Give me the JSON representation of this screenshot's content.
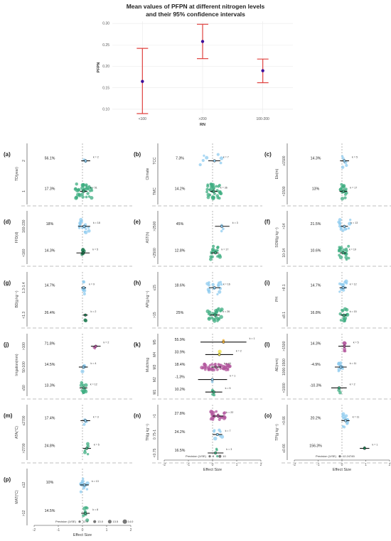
{
  "figure": {
    "title_line1": "Mean values of PFPN at different nitrogen levels",
    "title_line2": "and their 95% confidence intervals",
    "colors": {
      "blue": "#8ecbef",
      "green": "#3fae82",
      "purple": "#b1569c",
      "orange": "#f2b33a",
      "yellow": "#f0e35a",
      "dark_green": "#1d7a50",
      "dark_blue": "#3a8fc6",
      "red_ci": "#e0423f",
      "point": "#3f0e9a"
    }
  },
  "chart_data": [
    {
      "id": "top",
      "type": "scatter",
      "title": "Mean values of PFPN at different nitrogen levels and their 95% confidence intervals",
      "xlabel": "RN",
      "ylabel": "PFPN",
      "categories": [
        "<100",
        ">200",
        "100-200"
      ],
      "values": [
        0.165,
        0.258,
        0.19
      ],
      "ci_low": [
        0.09,
        0.218,
        0.162
      ],
      "ci_high": [
        0.242,
        0.298,
        0.217
      ],
      "ylim": [
        0.09,
        0.305
      ],
      "yticks": [
        "0.30",
        "0.25",
        "0.20",
        "0.15",
        "0.10"
      ],
      "grid": true
    },
    {
      "id": "a",
      "label": "(a)",
      "type": "scatter",
      "ylabel": "TD(year)",
      "groups": [
        {
          "cat": "2",
          "pct": "56.1%",
          "k": "k = 2",
          "color": "blue",
          "mean": 0.13,
          "lo": -0.05,
          "hi": 0.32,
          "n": 2,
          "spread": 0.12
        },
        {
          "cat": "1",
          "pct": "17.3%",
          "k": "k = 51",
          "color": "green",
          "mean": 0.05,
          "lo": -0.1,
          "hi": 0.2,
          "n": 51,
          "spread": 0.35
        }
      ]
    },
    {
      "id": "b",
      "label": "(b)",
      "type": "scatter",
      "ylabel": "Climate",
      "groups": [
        {
          "cat": "TCC",
          "pct": "7.3%",
          "k": "k = 7",
          "color": "blue",
          "mean": 0.08,
          "lo": -0.18,
          "hi": 0.32,
          "n": 7,
          "spread": 0.6
        },
        {
          "cat": "TMC",
          "pct": "14.2%",
          "k": "k = 36",
          "color": "green",
          "mean": 0.05,
          "lo": -0.1,
          "hi": 0.2,
          "n": 36,
          "spread": 0.3
        }
      ]
    },
    {
      "id": "c",
      "label": "(c)",
      "type": "scatter",
      "ylabel": "Ele(m)",
      "groups": [
        {
          "cat": "≥1500",
          "pct": "14.3%",
          "k": "k = 5",
          "color": "blue",
          "mean": 0.1,
          "lo": -0.08,
          "hi": 0.3,
          "n": 5,
          "spread": 0.1
        },
        {
          "cat": "<1500",
          "pct": "13%",
          "k": "k = 17",
          "color": "green",
          "mean": 0.06,
          "lo": -0.1,
          "hi": 0.22,
          "n": 17,
          "spread": 0.15
        }
      ]
    },
    {
      "id": "d",
      "label": "(d)",
      "type": "scatter",
      "ylabel": "FFD(d)",
      "groups": [
        {
          "cat": "160-230",
          "pct": "18%",
          "k": "k = 18",
          "color": "blue",
          "mean": 0.07,
          "lo": -0.18,
          "hi": 0.32,
          "n": 18,
          "spread": 0.2
        },
        {
          "cat": "<160",
          "pct": "14.3%",
          "k": "k = 5",
          "color": "dark_green",
          "mean": 0.03,
          "lo": -0.25,
          "hi": 0.3,
          "n": 5,
          "spread": 0.1
        }
      ]
    },
    {
      "id": "e",
      "label": "(e)",
      "type": "scatter",
      "ylabel": "AST(h)",
      "groups": [
        {
          "cat": ">2500",
          "pct": "45%",
          "k": "k = 3",
          "color": "blue",
          "mean": 0.38,
          "lo": 0.1,
          "hi": 0.7,
          "n": 3,
          "spread": 0.1
        },
        {
          "cat": "<2500",
          "pct": "12.8%",
          "k": "k = 17",
          "color": "green",
          "mean": 0.12,
          "lo": -0.05,
          "hi": 0.25,
          "n": 17,
          "spread": 0.2
        }
      ]
    },
    {
      "id": "f",
      "label": "(f)",
      "type": "scatter",
      "ylabel": "SOM(g kg⁻¹)",
      "groups": [
        {
          "cat": ">14",
          "pct": "21.5%",
          "k": "k = 13",
          "color": "blue",
          "mean": 0.1,
          "lo": -0.05,
          "hi": 0.25,
          "n": 13,
          "spread": 0.25
        },
        {
          "cat": "10-14",
          "pct": "10.6%",
          "k": "k = 19",
          "color": "green",
          "mean": 0.05,
          "lo": -0.08,
          "hi": 0.18,
          "n": 19,
          "spread": 0.25
        }
      ]
    },
    {
      "id": "g",
      "label": "(g)",
      "type": "scatter",
      "ylabel": "BD(g kg⁻¹)",
      "groups": [
        {
          "cat": "1.3-1.4",
          "pct": "14.7%",
          "k": "k = 9",
          "color": "blue",
          "mean": 0.05,
          "lo": -0.05,
          "hi": 0.15,
          "n": 9,
          "spread": 0.05
        },
        {
          "cat": "<1.3",
          "pct": "26.4%",
          "k": "k = 2",
          "color": "dark_green",
          "mean": 0.12,
          "lo": 0.02,
          "hi": 0.22,
          "n": 2,
          "spread": 0.03
        }
      ]
    },
    {
      "id": "h",
      "label": "(h)",
      "type": "scatter",
      "ylabel": "AP(g kg⁻¹)",
      "groups": [
        {
          "cat": "≤15",
          "pct": "18.6%",
          "k": "k = 16",
          "color": "blue",
          "mean": 0.08,
          "lo": -0.15,
          "hi": 0.32,
          "n": 16,
          "spread": 0.3
        },
        {
          "cat": ">15",
          "pct": "25%",
          "k": "k = 26",
          "color": "green",
          "mean": 0.1,
          "lo": -0.1,
          "hi": 0.3,
          "n": 26,
          "spread": 0.3
        }
      ]
    },
    {
      "id": "i",
      "label": "(i)",
      "type": "scatter",
      "ylabel": "PH",
      "groups": [
        {
          "cat": ">8.1",
          "pct": "14.7%",
          "k": "k = 12",
          "color": "blue",
          "mean": 0.05,
          "lo": -0.1,
          "hi": 0.2,
          "n": 12,
          "spread": 0.15
        },
        {
          "cat": "≤8.1",
          "pct": "16.8%",
          "k": "k = 15",
          "color": "green",
          "mean": 0.08,
          "lo": -0.05,
          "hi": 0.2,
          "n": 15,
          "spread": 0.15
        }
      ]
    },
    {
      "id": "j",
      "label": "(j)",
      "type": "scatter",
      "ylabel": "Irrigation(mm)",
      "groups": [
        {
          "cat": ">100",
          "pct": "71.8%",
          "k": "k = 2",
          "color": "purple",
          "mean": 0.55,
          "lo": 0.35,
          "hi": 0.75,
          "n": 2,
          "spread": 0.08
        },
        {
          "cat": "50-100",
          "pct": "14.5%",
          "k": "k = 4",
          "color": "blue",
          "mean": 0.04,
          "lo": -0.15,
          "hi": 0.22,
          "n": 4,
          "spread": 0.05
        },
        {
          "cat": "≤50",
          "pct": "13.3%",
          "k": "k = 12",
          "color": "green",
          "mean": 0.05,
          "lo": -0.12,
          "hi": 0.2,
          "n": 12,
          "spread": 0.1
        }
      ]
    },
    {
      "id": "k",
      "label": "(k)",
      "type": "scatter",
      "ylabel": "Mulching",
      "groups": [
        {
          "cat": "M5",
          "pct": "55.9%",
          "k": "k = 1",
          "color": "orange",
          "mean": 0.45,
          "lo": -0.5,
          "hi": 1.4,
          "n": 1,
          "spread": 0
        },
        {
          "cat": "M4",
          "pct": "33.9%",
          "k": "k = 2",
          "color": "yellow",
          "mean": 0.28,
          "lo": -0.3,
          "hi": 0.85,
          "n": 2,
          "spread": 0.05
        },
        {
          "cat": "M3",
          "pct": "18.4%",
          "k": "k = 44",
          "color": "purple",
          "mean": 0.14,
          "lo": -0.05,
          "hi": 0.35,
          "n": 44,
          "spread": 0.6
        },
        {
          "cat": "M2",
          "pct": "-1.3%",
          "k": "k = 1",
          "color": "blue",
          "mean": -0.01,
          "lo": -0.6,
          "hi": 0.6,
          "n": 1,
          "spread": 0
        },
        {
          "cat": "M1",
          "pct": "10.2%",
          "k": "k = 5",
          "color": "green",
          "mean": 0.06,
          "lo": -0.3,
          "hi": 0.4,
          "n": 5,
          "spread": 0.08
        }
      ]
    },
    {
      "id": "l",
      "label": "(l)",
      "type": "scatter",
      "ylabel": "AE(mm)",
      "groups": [
        {
          "cat": ">1500",
          "pct": "14.3%",
          "k": "k = 5",
          "color": "purple",
          "mean": 0.1,
          "lo": -0.15,
          "hi": 0.35,
          "n": 5,
          "spread": 0.05
        },
        {
          "cat": "1000-1500",
          "pct": "-4.9%",
          "k": "k = 11",
          "color": "blue",
          "mean": -0.05,
          "lo": -0.3,
          "hi": 0.2,
          "n": 11,
          "spread": 0.1
        },
        {
          "cat": "<1000",
          "pct": "-10.3%",
          "k": "k = 2",
          "color": "green",
          "mean": -0.12,
          "lo": -0.45,
          "hi": 0.2,
          "n": 2,
          "spread": 0.08
        }
      ]
    },
    {
      "id": "m",
      "label": "(m)",
      "type": "scatter",
      "ylabel": "ATA(°C)",
      "groups": [
        {
          "cat": "≤2700",
          "pct": "17.4%",
          "k": "k = 3",
          "color": "blue",
          "mean": 0.12,
          "lo": -0.08,
          "hi": 0.32,
          "n": 3,
          "spread": 0.05
        },
        {
          "cat": ">2700",
          "pct": "24.8%",
          "k": "k = 5",
          "color": "green",
          "mean": 0.18,
          "lo": 0.02,
          "hi": 0.35,
          "n": 5,
          "spread": 0.08
        }
      ]
    },
    {
      "id": "n",
      "label": "(n)",
      "type": "scatter",
      "ylabel": "TN(g kg⁻¹)",
      "groups": [
        {
          "cat": ">1",
          "pct": "27.8%",
          "k": "k = 22",
          "color": "purple",
          "mean": 0.22,
          "lo": 0.0,
          "hi": 0.45,
          "n": 22,
          "spread": 0.3
        },
        {
          "cat": "0.75-1",
          "pct": "24.2%",
          "k": "k = 7",
          "color": "blue",
          "mean": 0.2,
          "lo": 0.0,
          "hi": 0.4,
          "n": 7,
          "spread": 0.2
        },
        {
          "cat": "<0.75",
          "pct": "16.5%",
          "k": "k = 3",
          "color": "green",
          "mean": 0.12,
          "lo": -0.2,
          "hi": 0.45,
          "n": 3,
          "spread": 0.08
        }
      ]
    },
    {
      "id": "o",
      "label": "(o)",
      "type": "scatter",
      "ylabel": "TP(g kg⁻¹)",
      "groups": [
        {
          "cat": ">0.66",
          "pct": "20.2%",
          "k": "k = 11",
          "color": "blue",
          "mean": 0.15,
          "lo": -0.02,
          "hi": 0.32,
          "n": 11,
          "spread": 0.2
        },
        {
          "cat": "≤0.66",
          "pct": "156.3%",
          "k": "k = 1",
          "color": "dark_green",
          "mean": 0.95,
          "lo": 0.75,
          "hi": 1.15,
          "n": 1,
          "spread": 0
        }
      ]
    },
    {
      "id": "p",
      "label": "(p)",
      "type": "scatter",
      "ylabel": "MAT(°C)",
      "groups": [
        {
          "cat": "≤12",
          "pct": "10%",
          "k": "k = 13",
          "color": "blue",
          "mean": 0.08,
          "lo": -0.1,
          "hi": 0.26,
          "n": 13,
          "spread": 0.15
        },
        {
          "cat": ">12",
          "pct": "14.5%",
          "k": "k = 8",
          "color": "green",
          "mean": 0.12,
          "lo": -0.05,
          "hi": 0.3,
          "n": 8,
          "spread": 0.12
        }
      ]
    }
  ],
  "axis": {
    "xticks": [
      "-2",
      "-1",
      "0",
      "1",
      "2"
    ],
    "xlabel": "Effect Size",
    "xlim": [
      -2,
      2
    ]
  },
  "legends": {
    "n": {
      "title": "Precision (1/SE)",
      "items": [
        "5",
        "10"
      ]
    },
    "o": {
      "title": "Precision (1/SE)",
      "items": [
        "12.24745"
      ]
    },
    "p": {
      "title": "Precision (1/SE)",
      "items": [
        "12.5",
        "13.0",
        "13.5",
        "14.0"
      ]
    }
  }
}
